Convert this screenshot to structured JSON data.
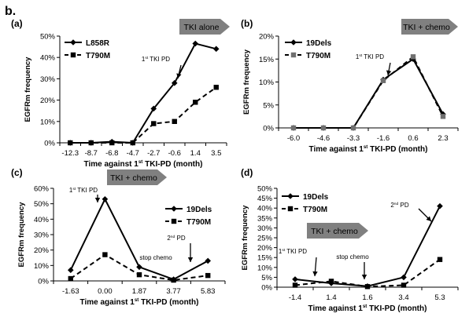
{
  "figure_label": "b.",
  "chart_data": [
    {
      "type": "line",
      "panel_label": "(a)",
      "categories": [
        "-12.3",
        "-8.7",
        "-6.8",
        "-4.7",
        "-2.7",
        "-0.6",
        "1.4",
        "3.5"
      ],
      "series": [
        {
          "name": "L858R",
          "style": "solid",
          "marker": "diamond",
          "values": [
            0,
            0,
            0.5,
            0,
            16,
            28,
            46.5,
            44
          ]
        },
        {
          "name": "T790M",
          "style": "dashed",
          "marker": "square",
          "values": [
            0,
            0,
            0,
            0,
            9,
            10,
            19,
            26
          ]
        }
      ],
      "yticks": [
        "0%",
        "10%",
        "20%",
        "30%",
        "40%",
        "50%"
      ],
      "ylim": [
        0,
        50
      ],
      "ylabel": "EGFRm frequency",
      "xlabel_parts": [
        "Time against 1",
        "st",
        " TKI-PD (month)"
      ],
      "banner": "TKI alone",
      "annotations": [
        {
          "text": "1",
          "sup": "st",
          "rest": " TKI PD"
        }
      ],
      "legend_position": "top-left"
    },
    {
      "type": "line",
      "panel_label": "(b)",
      "categories": [
        "-6.0",
        "-4.6",
        "-3.3",
        "-1.6",
        "0.6",
        "2.3"
      ],
      "series": [
        {
          "name": "19Dels",
          "style": "solid",
          "marker": "diamond",
          "values": [
            0,
            0,
            0,
            10.5,
            15,
            3
          ]
        },
        {
          "name": "T790M",
          "style": "dashed",
          "marker": "square",
          "values": [
            0,
            0,
            0,
            10.3,
            15.5,
            2.5
          ]
        }
      ],
      "yticks": [
        "0%",
        "5%",
        "10%",
        "15%",
        "20%"
      ],
      "ylim": [
        0,
        20
      ],
      "ylabel": "EGFRm frequency",
      "xlabel_parts": [
        "Time against 1",
        "st",
        " TKI-PD (month)"
      ],
      "banner": "TKI + chemo",
      "annotations": [
        {
          "text": "1",
          "sup": "st",
          "rest": " TKI PD"
        }
      ],
      "legend_position": "top-left"
    },
    {
      "type": "line",
      "panel_label": "(c)",
      "categories": [
        "-1.63",
        "0.00",
        "1.87",
        "3.77",
        "5.83"
      ],
      "series": [
        {
          "name": "19Dels",
          "style": "solid",
          "marker": "diamond",
          "values": [
            7,
            53,
            9,
            1,
            13
          ]
        },
        {
          "name": "T790M",
          "style": "dashed",
          "marker": "square",
          "values": [
            1.5,
            17,
            4,
            0.5,
            3.5
          ]
        }
      ],
      "yticks": [
        "0%",
        "10%",
        "20%",
        "30%",
        "40%",
        "50%",
        "60%"
      ],
      "ylim": [
        0,
        60
      ],
      "ylabel": "EGFRm frequency",
      "xlabel_parts": [
        "Time against 1",
        "st",
        " TKI-PD (month)"
      ],
      "banner": "TKI + chemo",
      "annotations": [
        {
          "text": "1",
          "sup": "st",
          "rest": " TKI PD"
        },
        {
          "text": "stop chemo",
          "sup": "",
          "rest": ""
        },
        {
          "text": "2",
          "sup": "nd",
          "rest": " PD"
        }
      ],
      "legend_position": "top-right"
    },
    {
      "type": "line",
      "panel_label": "(d)",
      "categories": [
        "-1.4",
        "1.4",
        "1.6",
        "3.4",
        "5.3"
      ],
      "series": [
        {
          "name": "19Dels",
          "style": "solid",
          "marker": "diamond",
          "values": [
            4,
            2,
            0.5,
            5,
            41
          ]
        },
        {
          "name": "T790M",
          "style": "dashed",
          "marker": "square",
          "values": [
            1,
            3,
            0.3,
            1,
            14
          ]
        }
      ],
      "yticks": [
        "0%",
        "5%",
        "10%",
        "15%",
        "20%",
        "25%",
        "30%",
        "35%",
        "40%",
        "45%",
        "50%"
      ],
      "ylim": [
        0,
        50
      ],
      "ylabel": "EGFRm frequency",
      "xlabel_parts": [
        "Time against 1",
        "st",
        " TKI-PD (month)"
      ],
      "banner": "TKI + chemo",
      "annotations": [
        {
          "text": "2",
          "sup": "nd",
          "rest": " PD"
        },
        {
          "text": "1",
          "sup": "st",
          "rest": " TKI PD"
        },
        {
          "text": "stop chemo",
          "sup": "",
          "rest": ""
        }
      ],
      "legend_position": "top-left"
    }
  ]
}
